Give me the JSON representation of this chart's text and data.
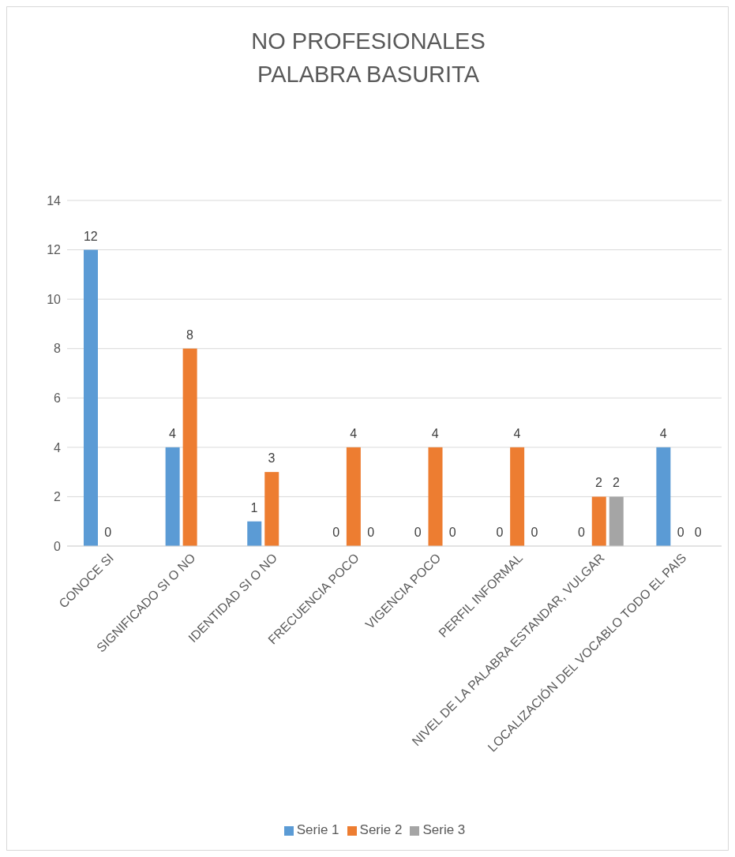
{
  "chart_data": {
    "type": "bar",
    "title": "NO PROFESIONALES\nPALABRA BASURITA",
    "categories": [
      "CONOCE SI",
      "SIGNIFICADO SI O NO",
      "IDENTIDAD SI O NO",
      "FRECUENCIA POCO",
      "VIGENCIA POCO",
      "PERFIL INFORMAL",
      "NIVEL DE LA PALABRA ESTANDAR, VULGAR",
      "LOCALIZACIÓN DEL VOCABLO TODO EL PAIS"
    ],
    "series": [
      {
        "name": "Serie 1",
        "color": "#5b9bd5",
        "values": [
          12,
          4,
          1,
          0,
          0,
          0,
          0,
          4
        ]
      },
      {
        "name": "Serie 2",
        "color": "#ed7d31",
        "values": [
          0,
          8,
          3,
          4,
          4,
          4,
          2,
          0
        ]
      },
      {
        "name": "Serie 3",
        "color": "#a5a5a5",
        "values": [
          null,
          null,
          null,
          0,
          0,
          0,
          2,
          0
        ]
      }
    ],
    "ylim": [
      0,
      14
    ],
    "yticks": [
      0,
      2,
      4,
      6,
      8,
      10,
      12,
      14
    ],
    "grid": "y",
    "legend": "bottom",
    "data_labels": true
  }
}
